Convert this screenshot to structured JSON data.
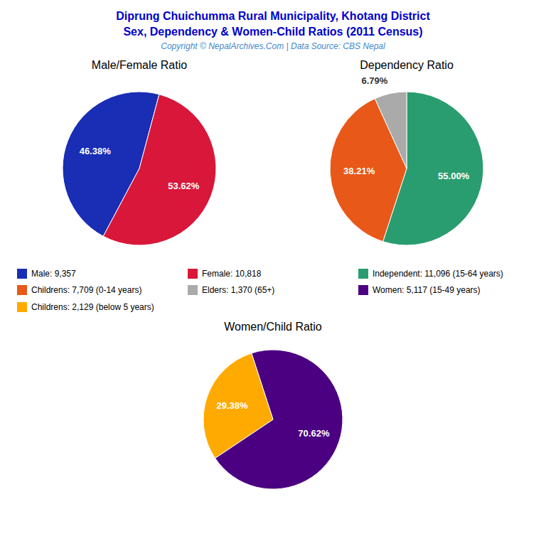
{
  "title": "Diprung Chuichumma Rural Municipality, Khotang District",
  "subtitle": "Sex, Dependency & Women-Child Ratios (2011 Census)",
  "annotations": [
    "Copyright © NepalArchives.Com | Data Source: CBS Nepal"
  ],
  "chart_data": [
    {
      "type": "pie",
      "title": "Male/Female Ratio",
      "categories": [
        "Male: 9,357",
        "Female: 10,818"
      ],
      "values": [
        46.38,
        53.62
      ],
      "value_labels": [
        "46.38%",
        "53.62%"
      ],
      "colors": [
        "#1a2db5",
        "#d8173a"
      ],
      "data_labels": true,
      "legend": "center"
    },
    {
      "type": "pie",
      "title": "Dependency Ratio",
      "categories": [
        "Independent: 11,096 (15-64 years)",
        "Childrens: 7,709 (0-14 years)",
        "Elders: 1,370 (65+)"
      ],
      "values": [
        55.0,
        38.21,
        6.79
      ],
      "value_labels": [
        "55.00%",
        "38.21%",
        "6.79%"
      ],
      "colors": [
        "#2a9d70",
        "#e85818",
        "#aaaaaa"
      ],
      "data_labels": true,
      "legend": "center"
    },
    {
      "type": "pie",
      "title": "Women/Child Ratio",
      "categories": [
        "Women: 5,117 (15-49 years)",
        "Childrens: 2,129 (below 5 years)"
      ],
      "values": [
        70.62,
        29.38
      ],
      "value_labels": [
        "70.62%",
        "29.38%"
      ],
      "colors": [
        "#4b0082",
        "#ffaa00"
      ],
      "data_labels": true,
      "legend": "center"
    }
  ]
}
